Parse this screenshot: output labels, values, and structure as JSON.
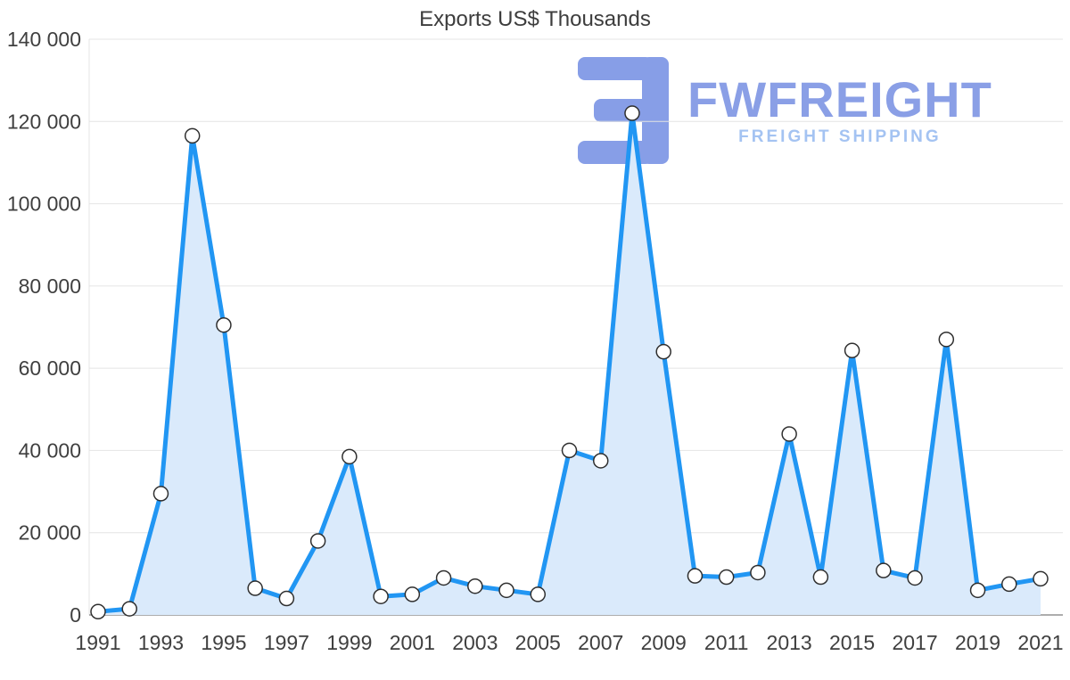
{
  "title": "Exports US$ Thousands",
  "watermark": {
    "brand": "FWFREIGHT",
    "tagline": "FREIGHT SHIPPING",
    "brand_color": "#8a9fe6",
    "tagline_color": "#a4c3f2",
    "logo_color": "#879ee7"
  },
  "chart_data": {
    "type": "area",
    "title": "Exports US$ Thousands",
    "xlabel": "",
    "ylabel": "",
    "x": [
      1991,
      1992,
      1993,
      1994,
      1995,
      1996,
      1997,
      1998,
      1999,
      2000,
      2001,
      2002,
      2003,
      2004,
      2005,
      2006,
      2007,
      2008,
      2009,
      2010,
      2011,
      2012,
      2013,
      2014,
      2015,
      2016,
      2017,
      2018,
      2019,
      2020,
      2021
    ],
    "series": [
      {
        "name": "Exports US$ Thousands",
        "values": [
          800,
          1500,
          29500,
          116500,
          70500,
          6500,
          4000,
          18000,
          38500,
          4500,
          5000,
          9000,
          7000,
          6000,
          5000,
          40000,
          37500,
          122000,
          64000,
          9500,
          9200,
          10300,
          44000,
          9200,
          64300,
          10800,
          9000,
          67000,
          6000,
          7500,
          8800
        ]
      }
    ],
    "xlim": [
      1991,
      2021
    ],
    "ylim": [
      0,
      140000
    ],
    "ytick_step": 20000,
    "ytick_labels": [
      "0",
      "20 000",
      "40 000",
      "60 000",
      "80 000",
      "100 000",
      "120 000",
      "140 000"
    ],
    "xtick_labels": [
      "1991",
      "1993",
      "1995",
      "1997",
      "1999",
      "2001",
      "2003",
      "2005",
      "2007",
      "2009",
      "2011",
      "2013",
      "2015",
      "2017",
      "2019",
      "2021"
    ],
    "grid": true,
    "legend": false,
    "colors": {
      "line": "#2196f3",
      "fill": "#daeafb",
      "marker_fill": "#ffffff",
      "marker_stroke": "#2f2f2f",
      "grid": "#e4e4e4",
      "axis": "#adadad",
      "tick_text": "#3f3f3f"
    }
  }
}
